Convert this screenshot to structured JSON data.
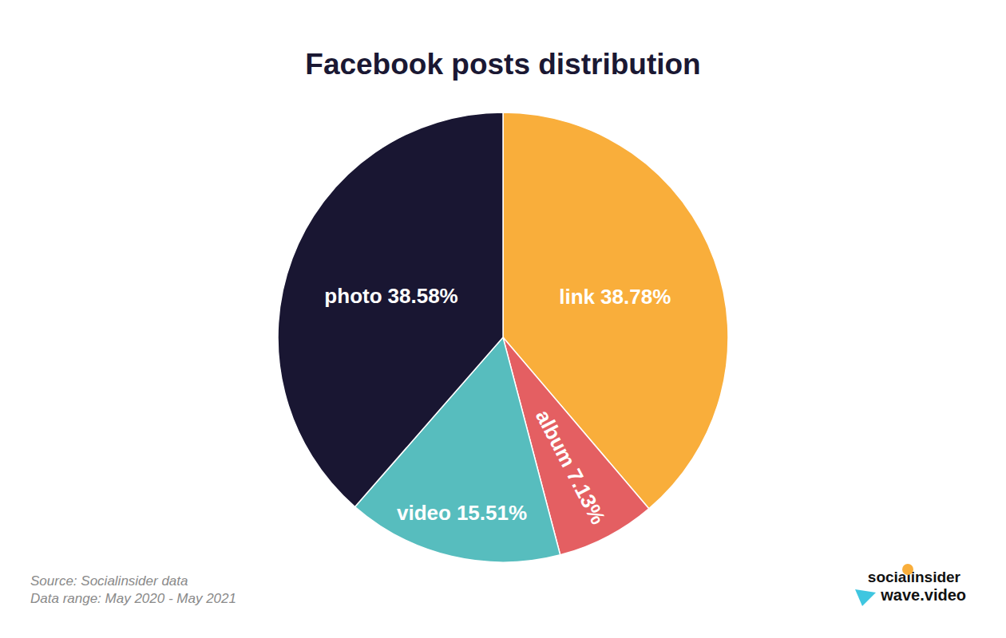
{
  "chart_data": {
    "type": "pie",
    "title": "Facebook posts distribution",
    "categories": [
      "link",
      "album",
      "video",
      "photo"
    ],
    "values": [
      38.78,
      7.13,
      15.51,
      38.58
    ],
    "value_labels": [
      "38.78%",
      "7.13%",
      "15.51%",
      "38.58%"
    ],
    "colors": [
      "#f9ae3b",
      "#e45f62",
      "#57bdbe",
      "#191632"
    ],
    "data_labels": true,
    "annotations": [
      "Source: Socialinsider data",
      "Data range: May 2020 - May 2021",
      "socialinsider",
      "wave.video"
    ]
  }
}
